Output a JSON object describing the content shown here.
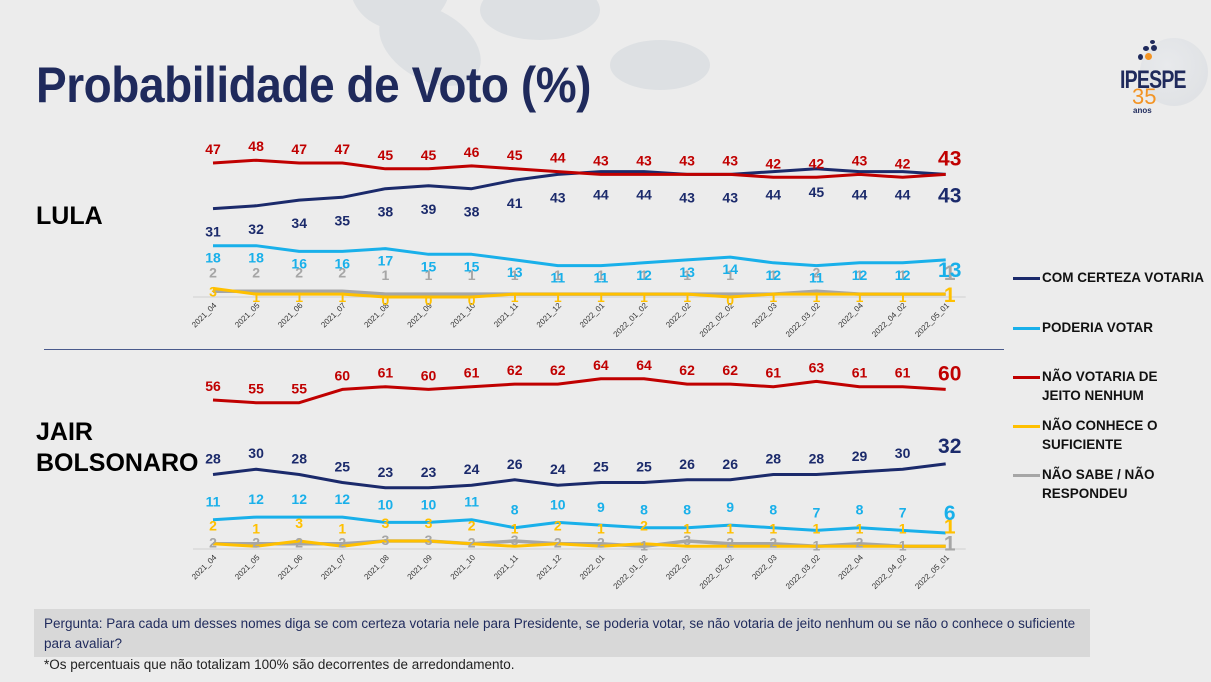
{
  "title": "Probabilidade de Voto (%)",
  "logo": {
    "brand": "IPESPE",
    "years": "35",
    "years_label": "anos",
    "accent": "#f39424"
  },
  "colors": {
    "com_certeza": "#1b2a6b",
    "poderia": "#19b0ea",
    "nao_votaria": "#c00000",
    "nao_conhece": "#ffc000",
    "nao_sabe": "#a6a6a6"
  },
  "legend": [
    {
      "key": "com_certeza",
      "label": "COM CERTEZA VOTARIA"
    },
    {
      "key": "poderia",
      "label": "PODERIA VOTAR"
    },
    {
      "key": "nao_votaria",
      "label": "NÃO VOTARIA DE JEITO NENHUM"
    },
    {
      "key": "nao_conhece",
      "label": "NÃO CONHECE O SUFICIENTE"
    },
    {
      "key": "nao_sabe",
      "label": "NÃO SABE / NÃO RESPONDEU"
    }
  ],
  "candidates": [
    {
      "name_lines": [
        "LULA"
      ]
    },
    {
      "name_lines": [
        "JAIR",
        "BOLSONARO"
      ]
    }
  ],
  "question": "Pergunta:  Para cada um desses nomes diga se com certeza votaria nele para Presidente, se poderia votar, se não votaria de jeito nenhum ou se não o conhece o suficiente para avaliar?",
  "footnote": "*Os percentuais que não totalizam 100% são decorrentes de arredondamento.",
  "chart_data": [
    {
      "type": "line",
      "title": "LULA",
      "categories": [
        "2021_04",
        "2021_05",
        "2021_06",
        "2021_07",
        "2021_08",
        "2021_09",
        "2021_10",
        "2021_11",
        "2021_12",
        "2022_01",
        "2022_01_02",
        "2022_02",
        "2022_02_02",
        "2022_03",
        "2022_03_02",
        "2022_04",
        "2022_04_02",
        "2022_05_01"
      ],
      "series": [
        {
          "key": "nao_votaria",
          "name": "NÃO VOTARIA DE JEITO NENHUM",
          "values": [
            47,
            48,
            47,
            47,
            45,
            45,
            46,
            45,
            44,
            43,
            43,
            43,
            43,
            42,
            42,
            43,
            42,
            43
          ]
        },
        {
          "key": "com_certeza",
          "name": "COM CERTEZA VOTARIA",
          "values": [
            31,
            32,
            34,
            35,
            38,
            39,
            38,
            41,
            43,
            44,
            44,
            43,
            43,
            44,
            45,
            44,
            44,
            43
          ]
        },
        {
          "key": "poderia",
          "name": "PODERIA VOTAR",
          "values": [
            18,
            18,
            16,
            16,
            17,
            15,
            15,
            13,
            11,
            11,
            12,
            13,
            14,
            12,
            11,
            12,
            12,
            13
          ]
        },
        {
          "key": "nao_sabe",
          "name": "NÃO SABE / NÃO RESPONDEU",
          "values": [
            2,
            2,
            2,
            2,
            1,
            1,
            1,
            1,
            1,
            1,
            1,
            1,
            1,
            1,
            2,
            1,
            1,
            1
          ]
        },
        {
          "key": "nao_conhece",
          "name": "NÃO CONHECE O SUFICIENTE",
          "values": [
            3,
            1,
            1,
            1,
            0,
            0,
            0,
            1,
            1,
            1,
            1,
            1,
            0,
            1,
            1,
            1,
            1,
            1
          ]
        }
      ],
      "xlabel": "",
      "ylabel": "",
      "ylim": [
        0,
        50
      ],
      "grid": false,
      "legend": "right"
    },
    {
      "type": "line",
      "title": "JAIR BOLSONARO",
      "categories": [
        "2021_04",
        "2021_05",
        "2021_06",
        "2021_07",
        "2021_08",
        "2021_09",
        "2021_10",
        "2021_11",
        "2021_12",
        "2022_01",
        "2022_01_02",
        "2022_02",
        "2022_02_02",
        "2022_03",
        "2022_03_02",
        "2022_04",
        "2022_04_02",
        "2022_05_01"
      ],
      "series": [
        {
          "key": "nao_votaria",
          "name": "NÃO VOTARIA DE JEITO NENHUM",
          "values": [
            56,
            55,
            55,
            60,
            61,
            60,
            61,
            62,
            62,
            64,
            64,
            62,
            62,
            61,
            63,
            61,
            61,
            60
          ]
        },
        {
          "key": "com_certeza",
          "name": "COM CERTEZA VOTARIA",
          "values": [
            28,
            30,
            28,
            25,
            23,
            23,
            24,
            26,
            24,
            25,
            25,
            26,
            26,
            28,
            28,
            29,
            30,
            32
          ]
        },
        {
          "key": "poderia",
          "name": "PODERIA VOTAR",
          "values": [
            11,
            12,
            12,
            12,
            10,
            10,
            11,
            8,
            10,
            9,
            8,
            8,
            9,
            8,
            7,
            8,
            7,
            6
          ]
        },
        {
          "key": "nao_conhece",
          "name": "NÃO CONHECE O SUFICIENTE",
          "values": [
            2,
            1,
            3,
            1,
            3,
            3,
            2,
            1,
            2,
            1,
            2,
            1,
            1,
            1,
            1,
            1,
            1,
            1
          ]
        },
        {
          "key": "nao_sabe",
          "name": "NÃO SABE / NÃO RESPONDEU",
          "values": [
            2,
            2,
            2,
            2,
            3,
            3,
            2,
            3,
            2,
            2,
            1,
            3,
            2,
            2,
            1,
            2,
            1,
            1
          ]
        }
      ],
      "xlabel": "",
      "ylabel": "",
      "ylim": [
        0,
        65
      ],
      "grid": false,
      "legend": "right"
    }
  ]
}
